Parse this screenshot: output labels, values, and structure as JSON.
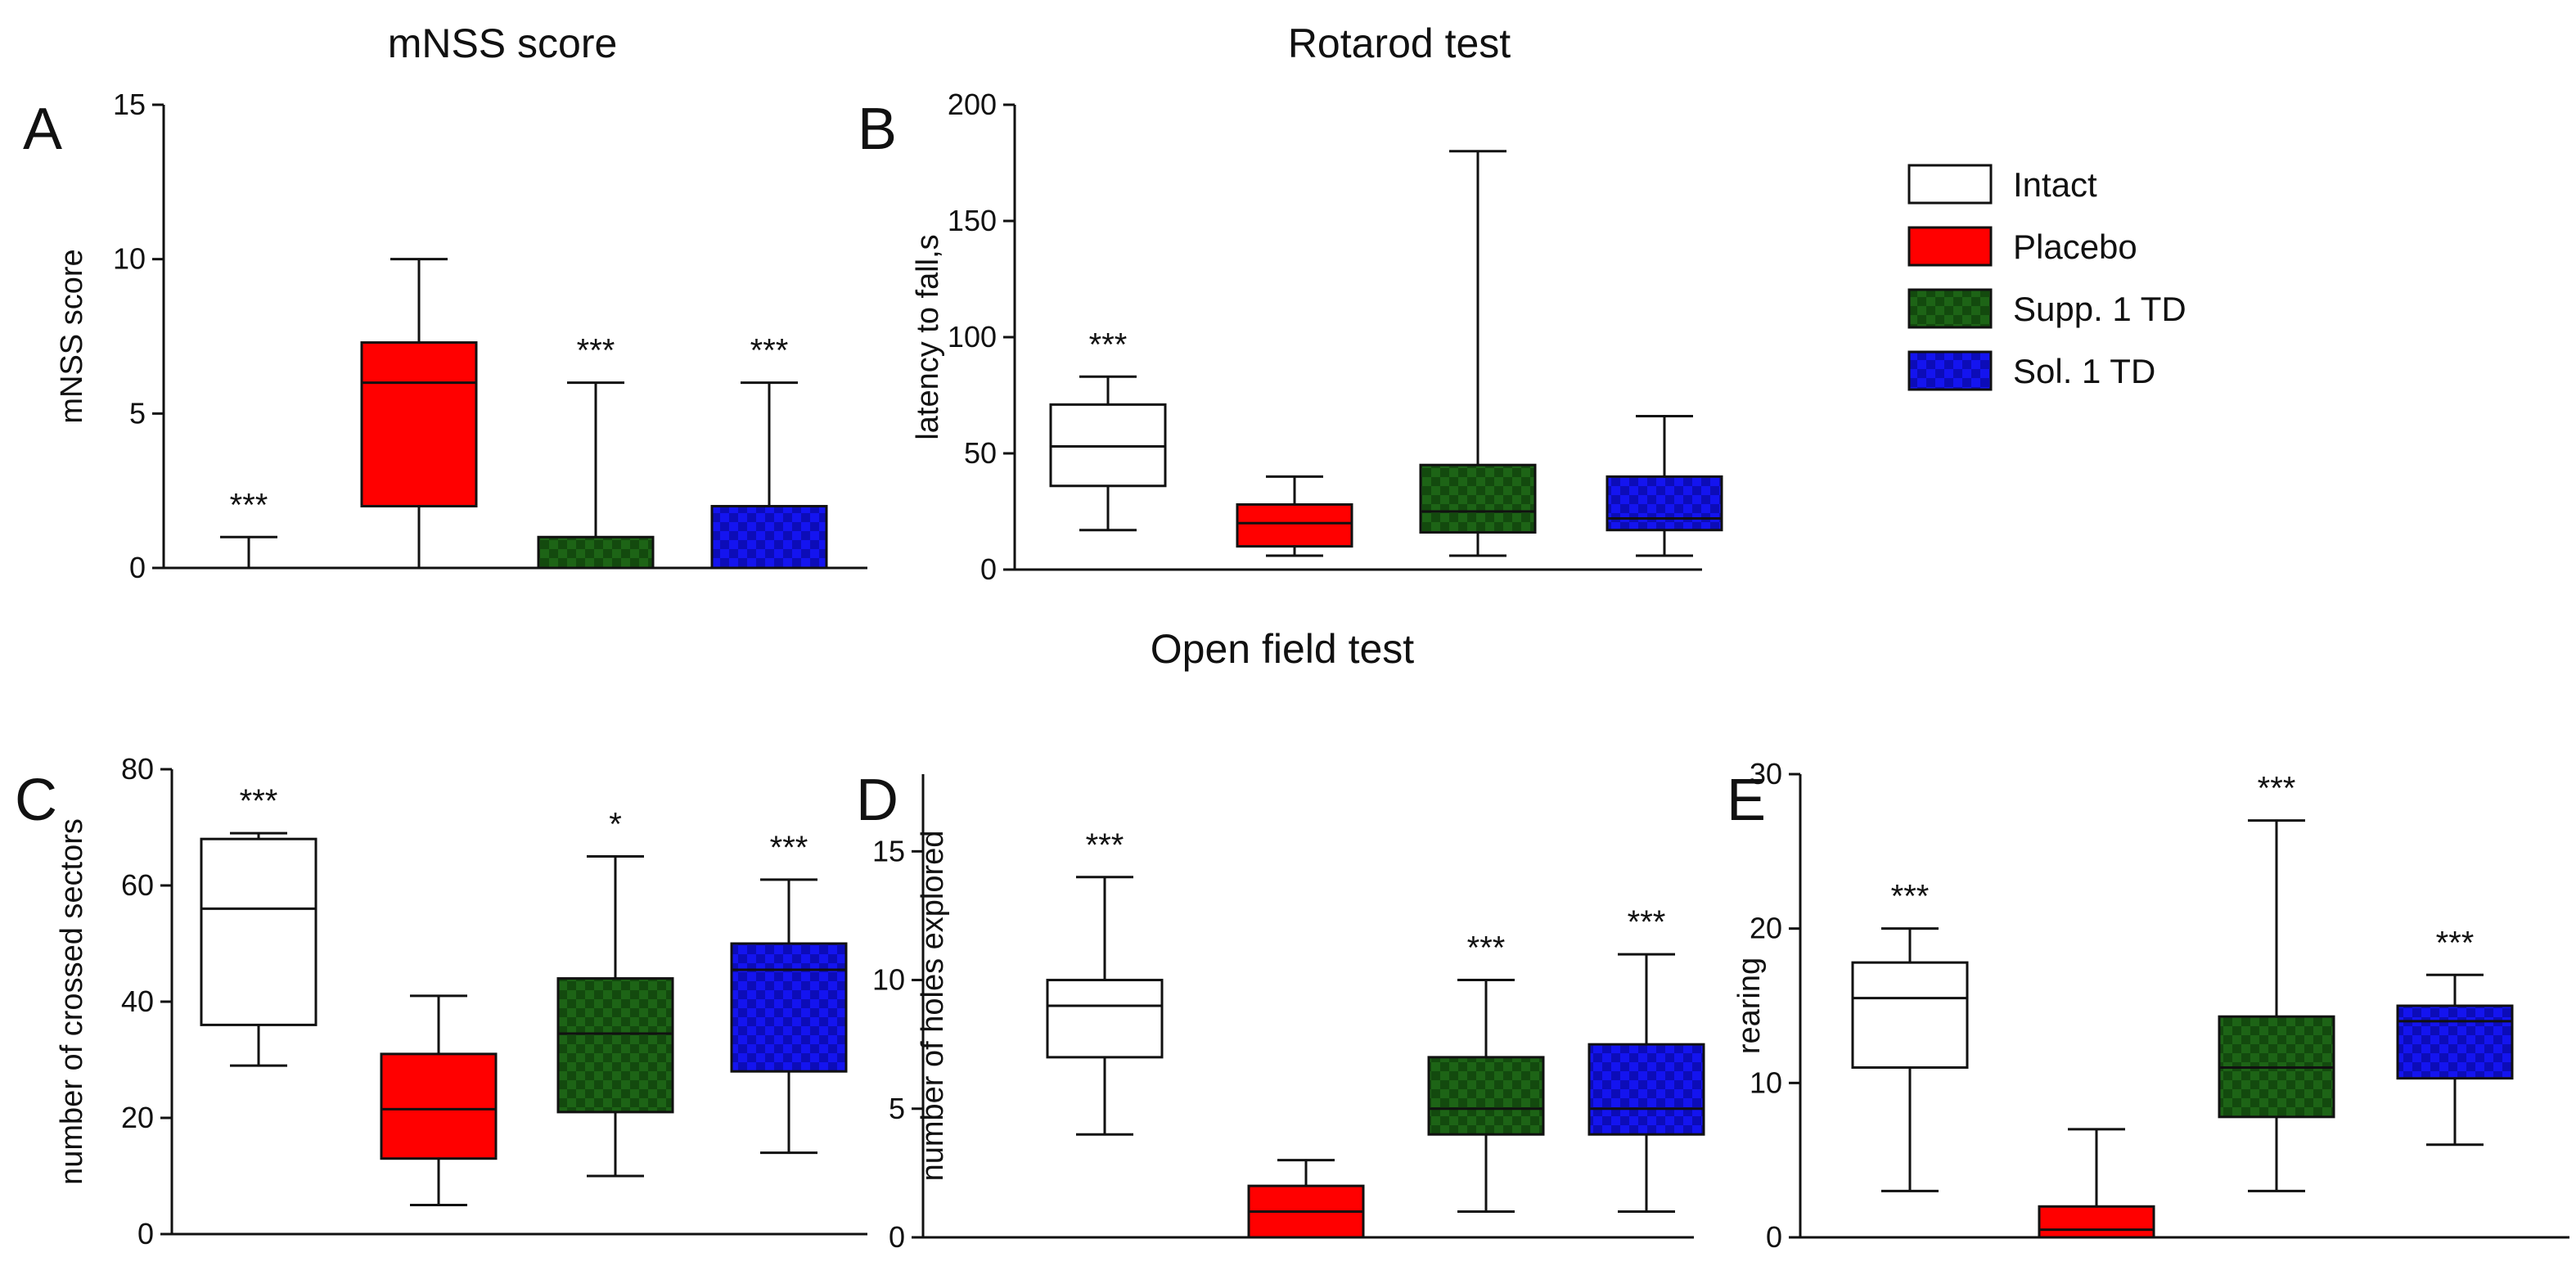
{
  "section_titles": {
    "open_field": "Open field test"
  },
  "legend": {
    "items": [
      {
        "label": "Intact",
        "color": "#ffffff",
        "pattern": "none"
      },
      {
        "label": "Placebo",
        "color": "#ff0000",
        "pattern": "none"
      },
      {
        "label": "Supp. 1 TD",
        "color": "#1a5e12",
        "pattern": "checker"
      },
      {
        "label": "Sol. 1 TD",
        "color": "#1010e0",
        "pattern": "checker"
      }
    ]
  },
  "chart_data": [
    {
      "type": "boxplot",
      "panel": "A",
      "title": "mNSS score",
      "ylabel": "mNSS score",
      "ylim": [
        0,
        15
      ],
      "yticks": [
        0,
        5,
        10,
        15
      ],
      "groups": [
        "Intact",
        "Placebo",
        "Supp. 1 TD",
        "Sol. 1 TD"
      ],
      "boxes": [
        {
          "group": "Intact",
          "min": 0,
          "q1": 0,
          "median": 0,
          "q3": 0,
          "max": 1,
          "sig": "***"
        },
        {
          "group": "Placebo",
          "min": 0,
          "q1": 2,
          "median": 6,
          "q3": 7.3,
          "max": 10,
          "sig": ""
        },
        {
          "group": "Supp. 1 TD",
          "min": 0,
          "q1": 0,
          "median": 0,
          "q3": 1,
          "max": 6,
          "sig": "***"
        },
        {
          "group": "Sol. 1 TD",
          "min": 0,
          "q1": 0,
          "median": 0,
          "q3": 2,
          "max": 6,
          "sig": "***"
        }
      ]
    },
    {
      "type": "boxplot",
      "panel": "B",
      "title": "Rotarod test",
      "ylabel": "latency to fall,s",
      "ylim": [
        0,
        200
      ],
      "yticks": [
        0,
        50,
        100,
        150,
        200
      ],
      "groups": [
        "Intact",
        "Placebo",
        "Supp. 1 TD",
        "Sol. 1 TD"
      ],
      "boxes": [
        {
          "group": "Intact",
          "min": 17,
          "q1": 36,
          "median": 53,
          "q3": 71,
          "max": 83,
          "sig": "***"
        },
        {
          "group": "Placebo",
          "min": 6,
          "q1": 10,
          "median": 20,
          "q3": 28,
          "max": 40,
          "sig": ""
        },
        {
          "group": "Supp. 1 TD",
          "min": 6,
          "q1": 16,
          "median": 25,
          "q3": 45,
          "max": 180,
          "sig": ""
        },
        {
          "group": "Sol. 1 TD",
          "min": 6,
          "q1": 17,
          "median": 22,
          "q3": 40,
          "max": 66,
          "sig": ""
        }
      ]
    },
    {
      "type": "boxplot",
      "panel": "C",
      "title": "",
      "ylabel": "number of crossed sectors",
      "ylim": [
        0,
        80
      ],
      "yticks": [
        0,
        20,
        40,
        60,
        80
      ],
      "groups": [
        "Intact",
        "Placebo",
        "Supp. 1 TD",
        "Sol. 1 TD"
      ],
      "boxes": [
        {
          "group": "Intact",
          "min": 29,
          "q1": 36,
          "median": 56,
          "q3": 68,
          "max": 69,
          "sig": "***"
        },
        {
          "group": "Placebo",
          "min": 5,
          "q1": 13,
          "median": 21.5,
          "q3": 31,
          "max": 41,
          "sig": ""
        },
        {
          "group": "Supp. 1 TD",
          "min": 10,
          "q1": 21,
          "median": 34.5,
          "q3": 44,
          "max": 65,
          "sig": "*"
        },
        {
          "group": "Sol. 1 TD",
          "min": 14,
          "q1": 28,
          "median": 45.5,
          "q3": 50,
          "max": 61,
          "sig": "***"
        }
      ]
    },
    {
      "type": "boxplot",
      "panel": "D",
      "title": "",
      "ylabel": "number of holes explored",
      "ylim": [
        0,
        18
      ],
      "yticks": [
        0,
        5,
        10,
        15
      ],
      "groups": [
        "Intact",
        "Placebo",
        "Supp. 1 TD",
        "Sol. 1 TD"
      ],
      "boxes": [
        {
          "group": "Intact",
          "min": 4,
          "q1": 7,
          "median": 9,
          "q3": 10,
          "max": 14,
          "sig": "***"
        },
        {
          "group": "Placebo",
          "min": 0,
          "q1": 0,
          "median": 1,
          "q3": 2,
          "max": 3,
          "sig": ""
        },
        {
          "group": "Supp. 1 TD",
          "min": 1,
          "q1": 4,
          "median": 5,
          "q3": 7,
          "max": 10,
          "sig": "***"
        },
        {
          "group": "Sol. 1 TD",
          "min": 1,
          "q1": 4,
          "median": 5,
          "q3": 7.5,
          "max": 11,
          "sig": "***"
        }
      ]
    },
    {
      "type": "boxplot",
      "panel": "E",
      "title": "",
      "ylabel": "rearing",
      "ylim": [
        0,
        30
      ],
      "yticks": [
        0,
        10,
        20,
        30
      ],
      "groups": [
        "Intact",
        "Placebo",
        "Supp. 1 TD",
        "Sol. 1 TD"
      ],
      "boxes": [
        {
          "group": "Intact",
          "min": 3,
          "q1": 11,
          "median": 15.5,
          "q3": 17.8,
          "max": 20,
          "sig": "***"
        },
        {
          "group": "Placebo",
          "min": 0,
          "q1": 0,
          "median": 0.5,
          "q3": 2,
          "max": 7,
          "sig": ""
        },
        {
          "group": "Supp. 1 TD",
          "min": 3,
          "q1": 7.8,
          "median": 11,
          "q3": 14.3,
          "max": 27,
          "sig": "***"
        },
        {
          "group": "Sol. 1 TD",
          "min": 6,
          "q1": 10.3,
          "median": 14,
          "q3": 15,
          "max": 17,
          "sig": "***"
        }
      ]
    }
  ]
}
